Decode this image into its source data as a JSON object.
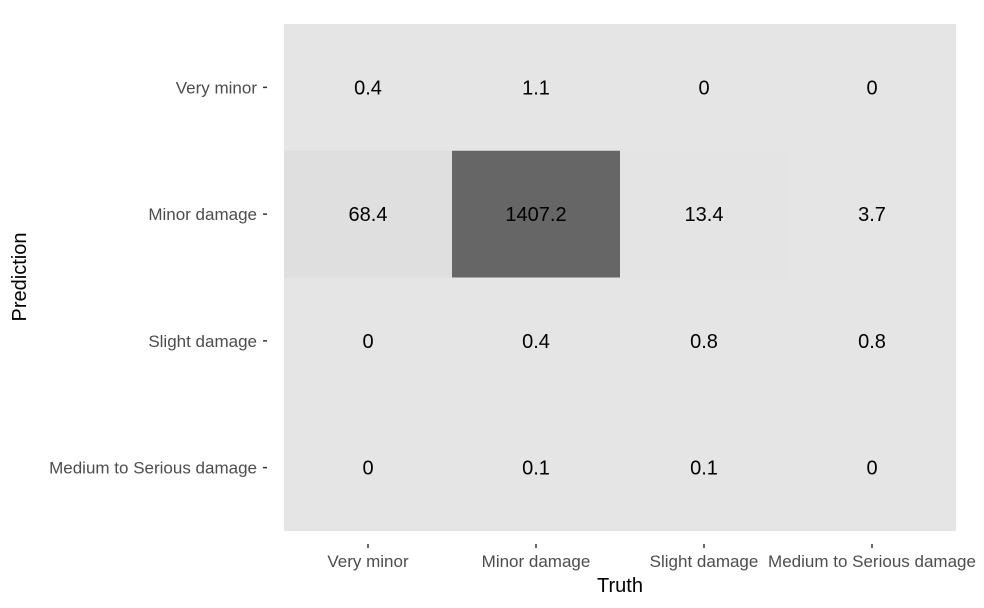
{
  "chart_data": {
    "type": "heatmap",
    "title": "",
    "xlabel": "Truth",
    "ylabel": "Prediction",
    "x_categories": [
      "Very minor",
      "Minor damage",
      "Slight damage",
      "Medium to Serious damage"
    ],
    "y_categories": [
      "Very minor",
      "Minor damage",
      "Slight damage",
      "Medium to Serious damage"
    ],
    "values": [
      [
        0.4,
        1.1,
        0,
        0
      ],
      [
        68.4,
        1407.2,
        13.4,
        3.7
      ],
      [
        0,
        0.4,
        0.8,
        0.8
      ],
      [
        0,
        0.1,
        0.1,
        0
      ]
    ],
    "value_labels": [
      [
        "0.4",
        "1.1",
        "0",
        "0"
      ],
      [
        "68.4",
        "1407.2",
        "13.4",
        "3.7"
      ],
      [
        "0",
        "0.4",
        "0.8",
        "0.8"
      ],
      [
        "0",
        "0.1",
        "0.1",
        "0"
      ]
    ],
    "color_low": "#e5e5e5",
    "color_high": "#666666",
    "panel_background": "#e5e5e5",
    "grid": false,
    "legend": "none"
  }
}
